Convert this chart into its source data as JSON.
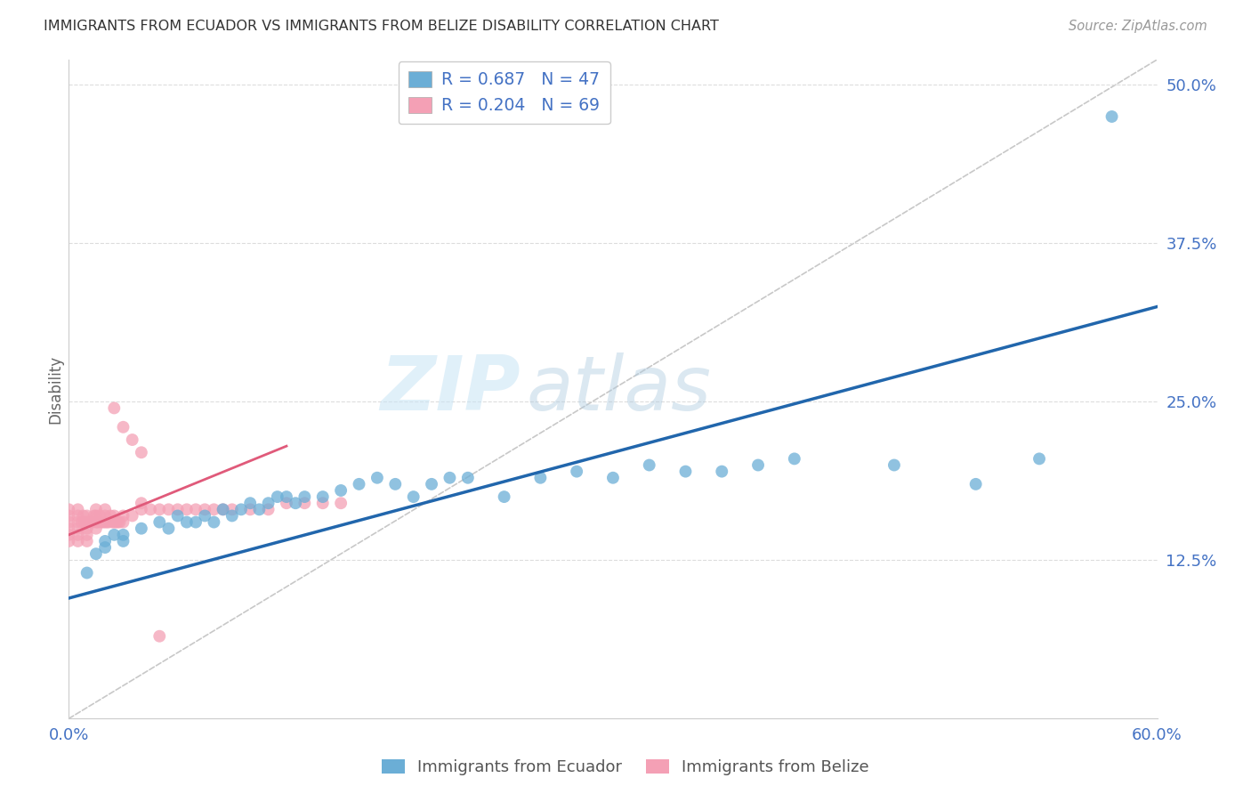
{
  "title": "IMMIGRANTS FROM ECUADOR VS IMMIGRANTS FROM BELIZE DISABILITY CORRELATION CHART",
  "source": "Source: ZipAtlas.com",
  "xlabel_blue": "Immigrants from Ecuador",
  "xlabel_pink": "Immigrants from Belize",
  "ylabel": "Disability",
  "xlim": [
    0.0,
    0.6
  ],
  "ylim": [
    0.0,
    0.52
  ],
  "yticks_right": [
    0.125,
    0.25,
    0.375,
    0.5
  ],
  "ytick_labels_right": [
    "12.5%",
    "25.0%",
    "37.5%",
    "50.0%"
  ],
  "xtick_labels": [
    "0.0%",
    "",
    "",
    "",
    "",
    "",
    "60.0%"
  ],
  "legend_r_blue": "R = 0.687",
  "legend_n_blue": "N = 47",
  "legend_r_pink": "R = 0.204",
  "legend_n_pink": "N = 69",
  "blue_color": "#6baed6",
  "pink_color": "#f4a0b5",
  "blue_line_color": "#2166ac",
  "pink_line_color": "#e05a7a",
  "diagonal_color": "#c8c8c8",
  "watermark_zip": "ZIP",
  "watermark_atlas": "atlas",
  "grid_color": "#dddddd",
  "background_color": "#ffffff",
  "blue_x": [
    0.01,
    0.015,
    0.02,
    0.02,
    0.025,
    0.03,
    0.03,
    0.04,
    0.05,
    0.055,
    0.06,
    0.065,
    0.07,
    0.075,
    0.08,
    0.085,
    0.09,
    0.095,
    0.1,
    0.105,
    0.11,
    0.115,
    0.12,
    0.125,
    0.13,
    0.14,
    0.15,
    0.16,
    0.17,
    0.18,
    0.19,
    0.2,
    0.21,
    0.22,
    0.24,
    0.26,
    0.28,
    0.3,
    0.32,
    0.34,
    0.36,
    0.38,
    0.4,
    0.455,
    0.5,
    0.535,
    0.575
  ],
  "blue_y": [
    0.115,
    0.13,
    0.135,
    0.14,
    0.145,
    0.14,
    0.145,
    0.15,
    0.155,
    0.15,
    0.16,
    0.155,
    0.155,
    0.16,
    0.155,
    0.165,
    0.16,
    0.165,
    0.17,
    0.165,
    0.17,
    0.175,
    0.175,
    0.17,
    0.175,
    0.175,
    0.18,
    0.185,
    0.19,
    0.185,
    0.175,
    0.185,
    0.19,
    0.19,
    0.175,
    0.19,
    0.195,
    0.19,
    0.2,
    0.195,
    0.195,
    0.2,
    0.205,
    0.2,
    0.185,
    0.205,
    0.475
  ],
  "pink_x": [
    0.0,
    0.0,
    0.0,
    0.0,
    0.0,
    0.0,
    0.005,
    0.005,
    0.005,
    0.005,
    0.005,
    0.005,
    0.007,
    0.008,
    0.009,
    0.01,
    0.01,
    0.01,
    0.01,
    0.01,
    0.012,
    0.013,
    0.014,
    0.015,
    0.015,
    0.015,
    0.015,
    0.016,
    0.017,
    0.018,
    0.019,
    0.02,
    0.02,
    0.02,
    0.021,
    0.022,
    0.023,
    0.024,
    0.025,
    0.025,
    0.026,
    0.027,
    0.028,
    0.03,
    0.03,
    0.035,
    0.04,
    0.04,
    0.045,
    0.05,
    0.055,
    0.06,
    0.065,
    0.07,
    0.075,
    0.08,
    0.085,
    0.09,
    0.1,
    0.11,
    0.12,
    0.13,
    0.14,
    0.15,
    0.025,
    0.03,
    0.035,
    0.04,
    0.05
  ],
  "pink_y": [
    0.14,
    0.145,
    0.15,
    0.155,
    0.16,
    0.165,
    0.14,
    0.145,
    0.15,
    0.155,
    0.16,
    0.165,
    0.155,
    0.16,
    0.155,
    0.14,
    0.145,
    0.15,
    0.155,
    0.16,
    0.155,
    0.155,
    0.16,
    0.15,
    0.155,
    0.16,
    0.165,
    0.155,
    0.16,
    0.155,
    0.155,
    0.155,
    0.16,
    0.165,
    0.155,
    0.155,
    0.16,
    0.155,
    0.155,
    0.16,
    0.155,
    0.155,
    0.155,
    0.155,
    0.16,
    0.16,
    0.165,
    0.17,
    0.165,
    0.165,
    0.165,
    0.165,
    0.165,
    0.165,
    0.165,
    0.165,
    0.165,
    0.165,
    0.165,
    0.165,
    0.17,
    0.17,
    0.17,
    0.17,
    0.245,
    0.23,
    0.22,
    0.21,
    0.065
  ],
  "blue_line_x": [
    0.0,
    0.6
  ],
  "blue_line_y": [
    0.095,
    0.325
  ],
  "pink_line_x": [
    0.0,
    0.12
  ],
  "pink_line_y": [
    0.145,
    0.215
  ]
}
